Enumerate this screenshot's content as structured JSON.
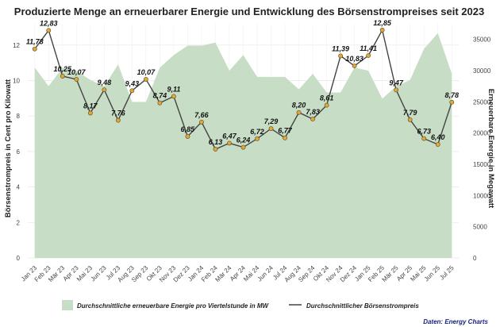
{
  "chart_data": {
    "type": "line+area",
    "title": "Produzierte Menge an erneuerbarer Energie und Entwicklung des Börsenstrompreises seit 2023",
    "y_left_label": "Börsenstrompreis in Cent pro Kilowatt",
    "y_right_label": "Erneuerbare Energie in Megawatt",
    "y_left_ticks": [
      "0",
      "2",
      "4",
      "6",
      "8",
      "10",
      "12"
    ],
    "y_right_ticks": [
      "0",
      "5000",
      "10000",
      "15000",
      "20000",
      "25000",
      "30000",
      "35000"
    ],
    "y_left_range": [
      0,
      13.2
    ],
    "y_right_range": [
      0,
      37500
    ],
    "categories": [
      "Jan 23",
      "Feb 23",
      "Mär 23",
      "Apr 23",
      "Mai 23",
      "Jun 23",
      "Jul 23",
      "Aug 23",
      "Sep 23",
      "Okt 23",
      "Nov 23",
      "Dez 23",
      "Jan 24",
      "Feb 24",
      "Mär 24",
      "Apr 24",
      "Mai 24",
      "Jun 24",
      "Jul 24",
      "Aug 24",
      "Sep 24",
      "Okt 24",
      "Nov 24",
      "Dez 24",
      "Jan 25",
      "Feb 25",
      "Mär 25",
      "Apr 25",
      "Mai 25",
      "Jun 25",
      "Jul 25"
    ],
    "x_tick_labels": [
      "Jan 23",
      "Mär 23",
      "Mai 23",
      "Jul 23",
      "Sep 23",
      "Nov 23",
      "Jan 24",
      "Mär 24",
      "Mai 24",
      "Jul 24",
      "Sep 24",
      "Nov 24",
      "Jan 25",
      "Mär 25",
      "Mai 25",
      "Jul 25"
    ],
    "x_tick_labels_minor": [
      "Feb 23",
      "Apr 23",
      "Jun 23",
      "Aug 23",
      "Okt 23",
      "Dez 23",
      "Feb 24",
      "Apr 24",
      "Jun 24",
      "Aug 24",
      "Okt 24",
      "Dez 24",
      "Feb 25",
      "Apr 25",
      "Jun 25"
    ],
    "series": [
      {
        "name": "Durchschnittliche erneuerbare Energie pro Viertelstunde in MW",
        "kind": "area",
        "axis": "right",
        "color": "#c8ddc6",
        "values": [
          30500,
          27500,
          30500,
          30000,
          28500,
          27500,
          31000,
          25000,
          25000,
          30500,
          32500,
          34000,
          34000,
          34500,
          30000,
          32500,
          29000,
          29000,
          29000,
          27000,
          29500,
          26500,
          26500,
          30500,
          30000,
          25500,
          27500,
          28500,
          33500,
          36000,
          29500
        ]
      },
      {
        "name": "Durchschnittlicher Börsenstrompreis",
        "kind": "line",
        "axis": "left",
        "color": "#444444",
        "marker_color": "#e0a83a",
        "values": [
          11.78,
          12.83,
          10.25,
          10.07,
          8.17,
          9.48,
          7.76,
          9.43,
          10.07,
          8.74,
          9.11,
          6.85,
          7.66,
          6.13,
          6.47,
          6.24,
          6.72,
          7.29,
          6.77,
          8.2,
          7.83,
          8.61,
          11.39,
          10.83,
          11.41,
          12.85,
          9.47,
          7.79,
          6.73,
          6.4,
          8.78
        ],
        "labels": [
          "11,78",
          "12,83",
          "10,25",
          "10,07",
          "8,17",
          "9,48",
          "7,76",
          "9,43",
          "10,07",
          "8,74",
          "9,11",
          "6,85",
          "7,66",
          "6,13",
          "6,47",
          "6,24",
          "6,72",
          "7,29",
          "6,77",
          "8,20",
          "7,83",
          "8,61",
          "11,39",
          "10,83",
          "11,41",
          "12,85",
          "9,47",
          "7,79",
          "6,73",
          "6,40",
          "8,78"
        ]
      }
    ],
    "legend_placement": "bottom",
    "grid": true
  },
  "source_text": "Daten: Energy Charts"
}
